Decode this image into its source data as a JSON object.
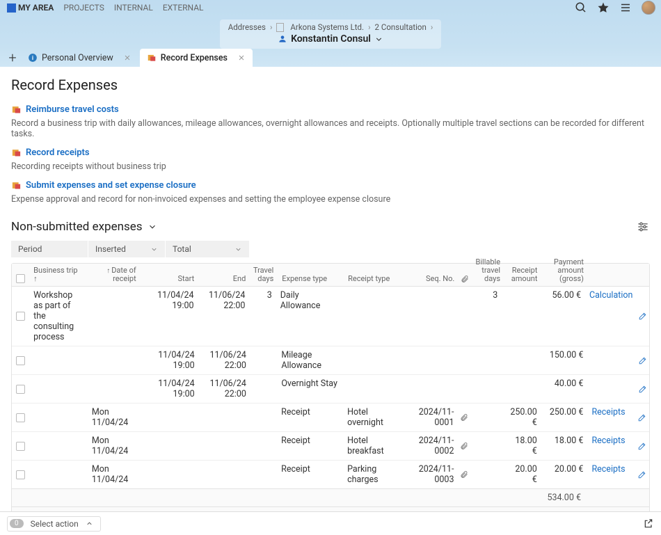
{
  "nav": {
    "my_area": "MY AREA",
    "projects": "PROJECTS",
    "internal": "INTERNAL",
    "external": "EXTERNAL"
  },
  "breadcrumb": {
    "item1": "Addresses",
    "item2": "Arkona Systems Ltd.",
    "item3": "2 Consultation"
  },
  "person": {
    "name": "Konstantin Consul"
  },
  "tabs": {
    "tab1": "Personal Overview",
    "tab2": "Record Expenses"
  },
  "page": {
    "title": "Record Expenses"
  },
  "actions": {
    "reimburse": {
      "title": "Reimburse travel costs",
      "desc": "Record a business trip with daily allowances, mileage allowances, overnight allowances and receipts. Optionally multiple travel sections can be recorded for different tasks."
    },
    "receipts": {
      "title": "Record receipts",
      "desc": "Recording receipts without business trip"
    },
    "submit": {
      "title": "Submit expenses and set expense closure",
      "desc": "Expense approval and record for non-invoiced expenses and setting the employee expense closure"
    }
  },
  "section": {
    "title": "Non-submitted expenses"
  },
  "filters": {
    "period": "Period",
    "inserted": "Inserted",
    "total": "Total"
  },
  "columns": {
    "business_trip": "Business trip",
    "date_of_receipt": "Date of receipt",
    "start": "Start",
    "end": "End",
    "travel_days": "Travel days",
    "expense_type": "Expense type",
    "receipt_type": "Receipt type",
    "seq_no": "Seq. No.",
    "billable_travel_days": "Billable travel days",
    "receipt_amount": "Receipt amount",
    "payment_amount": "Payment amount (gross)"
  },
  "rows": [
    {
      "biz": "Workshop as part of the consulting process",
      "date": "",
      "start": "11/04/24 19:00",
      "end": "11/06/24 22:00",
      "days": "3",
      "exptype": "Daily Allowance",
      "rectype": "",
      "seq": "",
      "clip": false,
      "billdays": "3",
      "recamt": "",
      "payamt": "56.00 €",
      "link": "Calculation",
      "edit": true
    },
    {
      "biz": "",
      "date": "",
      "start": "11/04/24 19:00",
      "end": "11/06/24 22:00",
      "days": "",
      "exptype": "Mileage Allowance",
      "rectype": "",
      "seq": "",
      "clip": false,
      "billdays": "",
      "recamt": "",
      "payamt": "150.00 €",
      "link": "",
      "edit": true
    },
    {
      "biz": "",
      "date": "",
      "start": "11/04/24 19:00",
      "end": "11/06/24 22:00",
      "days": "",
      "exptype": "Overnight Stay",
      "rectype": "",
      "seq": "",
      "clip": false,
      "billdays": "",
      "recamt": "",
      "payamt": "40.00 €",
      "link": "",
      "edit": true
    },
    {
      "biz": "",
      "date": "Mon 11/04/24",
      "start": "",
      "end": "",
      "days": "",
      "exptype": "Receipt",
      "rectype": "Hotel overnight",
      "seq": "2024/11-0001",
      "clip": true,
      "billdays": "",
      "recamt": "250.00 €",
      "payamt": "250.00 €",
      "link": "Receipts",
      "edit": true
    },
    {
      "biz": "",
      "date": "Mon 11/04/24",
      "start": "",
      "end": "",
      "days": "",
      "exptype": "Receipt",
      "rectype": "Hotel breakfast",
      "seq": "2024/11-0002",
      "clip": true,
      "billdays": "",
      "recamt": "18.00 €",
      "payamt": "18.00 €",
      "link": "Receipts",
      "edit": true
    },
    {
      "biz": "",
      "date": "Mon 11/04/24",
      "start": "",
      "end": "",
      "days": "",
      "exptype": "Receipt",
      "rectype": "Parking charges",
      "seq": "2024/11-0003",
      "clip": true,
      "billdays": "",
      "recamt": "20.00 €",
      "payamt": "20.00 €",
      "link": "Receipts",
      "edit": true
    }
  ],
  "totals": {
    "subtotal": "534.00 €",
    "grand": "534.00 €"
  },
  "footer": {
    "select_badge": "0",
    "select_action": "Select action"
  }
}
